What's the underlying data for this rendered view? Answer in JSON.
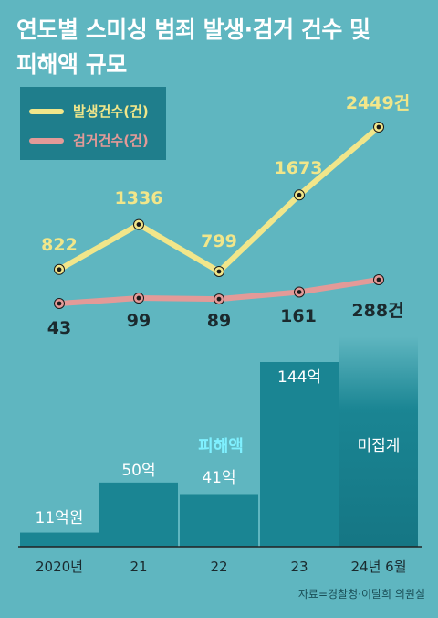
{
  "title_lines": [
    "연도별 스미싱 범죄 발생·검거 건수 및",
    "피해액 규모"
  ],
  "legend": [
    {
      "label": "발생건수(건)",
      "color": "#f1e68a"
    },
    {
      "label": "검거건수(건)",
      "color": "#e39a98"
    }
  ],
  "source": "자료=경찰청·이달희 의원실",
  "colors": {
    "background": "#5fb6c0",
    "bar": "#1a8593",
    "bar_text": "#ffffff",
    "damage_label": "#7ff0ff",
    "occurrence": "#f1e68a",
    "arrest": "#e39a98",
    "value_dark": "#1b2a2e"
  },
  "chart_data": [
    {
      "type": "line",
      "categories": [
        "2020년",
        "21",
        "22",
        "23",
        "24년 6월"
      ],
      "series": [
        {
          "name": "발생건수(건)",
          "values": [
            822,
            1336,
            799,
            1673,
            2449
          ],
          "labels": [
            "822",
            "1336",
            "799",
            "1673",
            "2449건"
          ]
        },
        {
          "name": "검거건수(건)",
          "values": [
            43,
            99,
            89,
            161,
            288
          ],
          "labels": [
            "43",
            "99",
            "89",
            "161",
            "288건"
          ]
        }
      ]
    },
    {
      "type": "bar",
      "categories": [
        "2020년",
        "21",
        "22",
        "23",
        "24년 6월"
      ],
      "series": [
        {
          "name": "피해액",
          "values": [
            11,
            50,
            41,
            144,
            null
          ],
          "labels": [
            "11억원",
            "50억",
            "41억",
            "144억",
            "미집계"
          ]
        }
      ]
    }
  ]
}
